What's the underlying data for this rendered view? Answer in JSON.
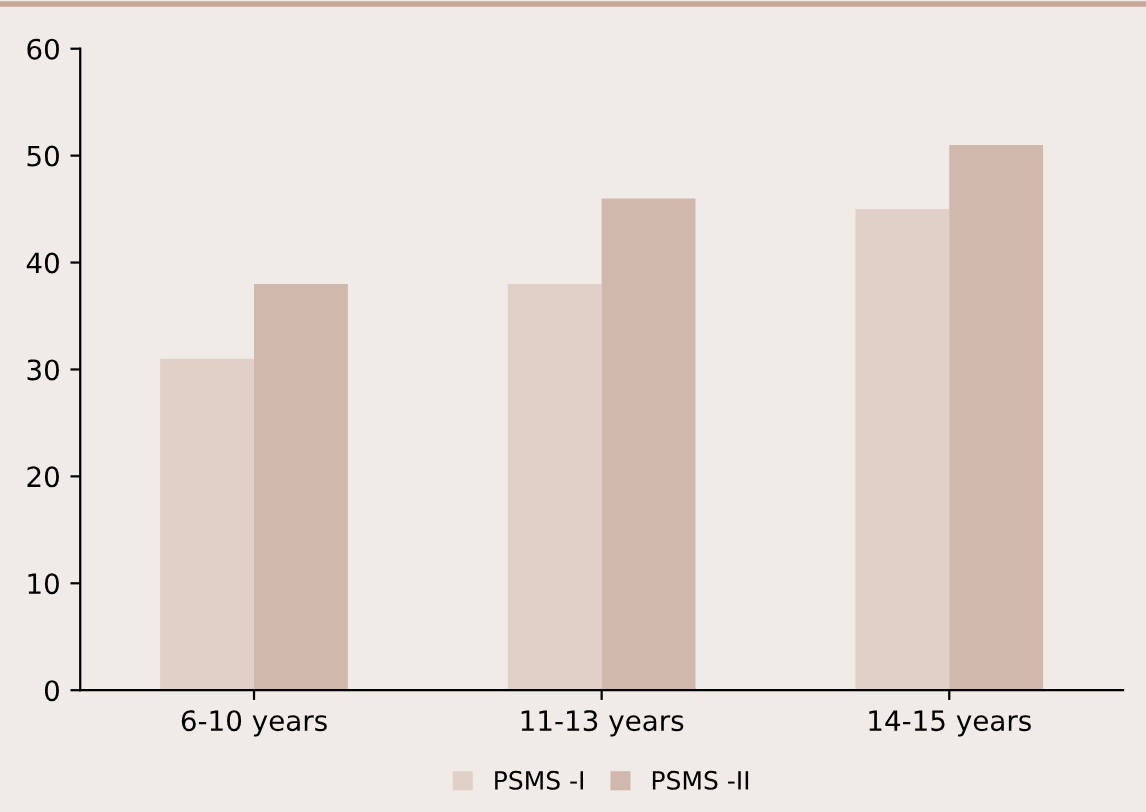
{
  "chart_data": {
    "type": "bar",
    "categories": [
      "6-10 years",
      "11-13 years",
      "14-15 years"
    ],
    "series": [
      {
        "name": "PSMS -I",
        "color": "#e0d0c8",
        "values": [
          31,
          38,
          45
        ]
      },
      {
        "name": "PSMS -II",
        "color": "#d0b8ac",
        "values": [
          38,
          46,
          51
        ]
      }
    ],
    "ylim": [
      0,
      60
    ],
    "yticks": [
      0,
      10,
      20,
      30,
      40,
      50,
      60
    ],
    "grid": false,
    "legend": "bottom"
  }
}
